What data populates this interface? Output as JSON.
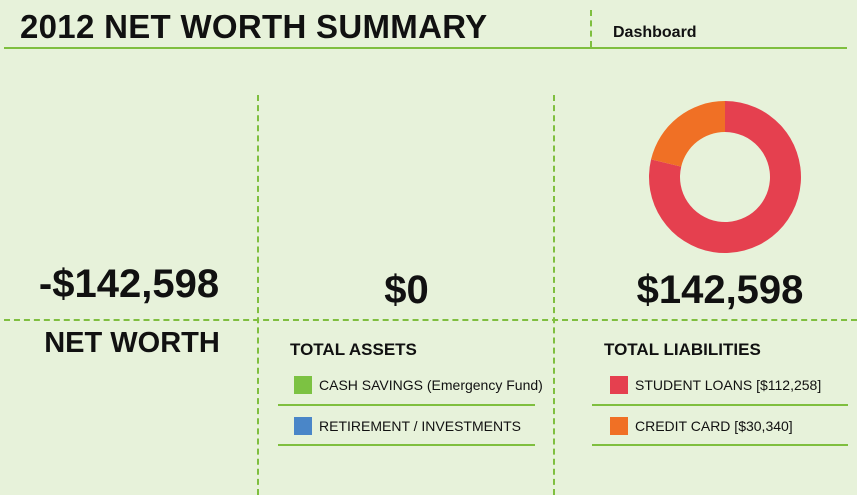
{
  "header": {
    "title": "2012 NET WORTH SUMMARY",
    "tab_label": "Dashboard"
  },
  "net_worth": {
    "value": "-$142,598",
    "label": "NET WORTH"
  },
  "assets": {
    "value": "$0",
    "heading": "TOTAL ASSETS",
    "items": [
      {
        "label": "CASH SAVINGS (Emergency Fund)",
        "color": "#7cc242"
      },
      {
        "label": "RETIREMENT / INVESTMENTS",
        "color": "#4a86c8"
      }
    ]
  },
  "liabilities": {
    "value": "$142,598",
    "heading": "TOTAL LIABILITIES",
    "items": [
      {
        "label": "STUDENT LOANS [$112,258]",
        "color": "#e5404f"
      },
      {
        "label": "CREDIT CARD [$30,340]",
        "color": "#f07025"
      }
    ]
  },
  "chart_data": {
    "type": "pie",
    "donut": true,
    "categories": [
      "STUDENT LOANS",
      "CREDIT CARD"
    ],
    "values": [
      112258,
      30340
    ],
    "colors": [
      "#e5404f",
      "#f07025"
    ]
  },
  "colors": {
    "background": "#e7f2da",
    "rule": "#7fbf3f"
  }
}
